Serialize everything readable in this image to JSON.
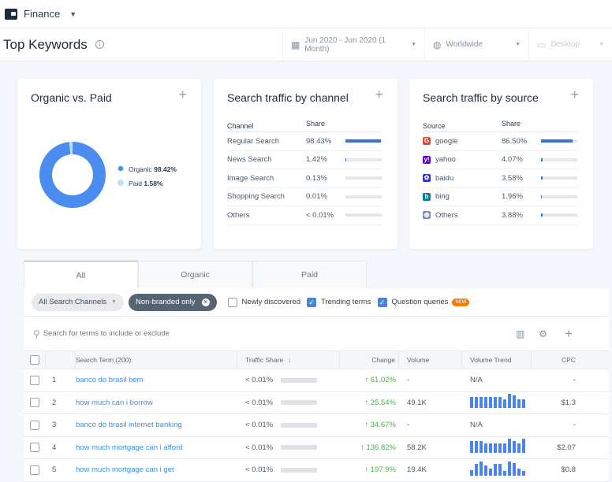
{
  "app": {
    "title": "Finance"
  },
  "header": {
    "title": "Top Keywords",
    "date_range": "Jun 2020 - Jun 2020 (1 Month)",
    "country": "Worldwide",
    "device": "Desktop"
  },
  "cards": {
    "organic_paid": {
      "title": "Organic vs. Paid",
      "legend": [
        {
          "label": "Organic",
          "value": "98.42%",
          "pct": 98.42,
          "color": "#4a8cf0"
        },
        {
          "label": "Paid",
          "value": "1.58%",
          "pct": 1.58,
          "color": "#bfe0f8"
        }
      ]
    },
    "channel": {
      "title": "Search traffic by channel",
      "headers": [
        "Channel",
        "Share"
      ],
      "rows": [
        {
          "name": "Regular Search",
          "share": "98.43%",
          "pct": 98.43
        },
        {
          "name": "News Search",
          "share": "1.42%",
          "pct": 1.42
        },
        {
          "name": "Image Search",
          "share": "0.13%",
          "pct": 0.13
        },
        {
          "name": "Shopping Search",
          "share": "0.01%",
          "pct": 0.01
        },
        {
          "name": "Others",
          "share": "< 0.01%",
          "pct": 0
        }
      ]
    },
    "source": {
      "title": "Search traffic by source",
      "headers": [
        "Source",
        "Share"
      ],
      "rows": [
        {
          "name": "google",
          "share": "86.50%",
          "pct": 86.5,
          "icon": "google-icon",
          "glyph": "G",
          "color": "#ea4335"
        },
        {
          "name": "yahoo",
          "share": "4.07%",
          "pct": 4.07,
          "icon": "yahoo-icon",
          "glyph": "y!",
          "color": "#6001d2"
        },
        {
          "name": "baidu",
          "share": "3.58%",
          "pct": 3.58,
          "icon": "baidu-icon",
          "glyph": "✿",
          "color": "#2932e1"
        },
        {
          "name": "bing",
          "share": "1.96%",
          "pct": 1.96,
          "icon": "bing-icon",
          "glyph": "b",
          "color": "#00809d"
        },
        {
          "name": "Others",
          "share": "3.88%",
          "pct": 3.88,
          "icon": "globe-icon",
          "glyph": "◍",
          "color": "#7f8fa4"
        }
      ]
    }
  },
  "tabs": [
    "All",
    "Organic",
    "Paid"
  ],
  "filters": {
    "channels": "All Search Channels",
    "branded": "Non-branded only",
    "newly": "Newly discovered",
    "trending": "Trending terms",
    "question": "Question queries",
    "new_badge": "NEW"
  },
  "search": {
    "placeholder": "Search for terms to include or exclude"
  },
  "table": {
    "headers": [
      "Search Term (200)",
      "Traffic Share",
      "Change",
      "Volume",
      "Volume Trend",
      "CPC"
    ],
    "rows": [
      {
        "n": "1",
        "term": "banco do brasil bem",
        "share": "< 0.01%",
        "change": "↑ 61.02%",
        "volume": "-",
        "trend": "N/A",
        "cpc": "-"
      },
      {
        "n": "2",
        "term": "how much can i borrow",
        "share": "< 0.01%",
        "change": "↑ 25.54%",
        "volume": "49.1K",
        "bars": [
          0.8,
          0.8,
          0.8,
          0.8,
          0.8,
          0.8,
          0.8,
          0.65,
          1,
          0.9,
          0.65,
          0.65
        ],
        "cpc": "$1.3"
      },
      {
        "n": "3",
        "term": "banco do brasil internet banking",
        "share": "< 0.01%",
        "change": "↑ 34.67%",
        "volume": "-",
        "trend": "N/A",
        "cpc": "-"
      },
      {
        "n": "4",
        "term": "how much mortgage can i afford",
        "share": "< 0.01%",
        "change": "↑ 136.82%",
        "volume": "58.2K",
        "bars": [
          0.85,
          0.85,
          0.85,
          0.7,
          0.7,
          0.7,
          0.7,
          0.7,
          1,
          0.85,
          0.7,
          1
        ],
        "cpc": "$2.07"
      },
      {
        "n": "5",
        "term": "how much mortgage can i get",
        "share": "< 0.01%",
        "change": "↑ 197.9%",
        "volume": "19.4K",
        "bars": [
          0.4,
          0.8,
          1,
          0.7,
          0.5,
          0.8,
          0.8,
          0.3,
          1,
          0.9,
          0.5,
          0.3
        ],
        "cpc": "$0.8"
      }
    ]
  }
}
